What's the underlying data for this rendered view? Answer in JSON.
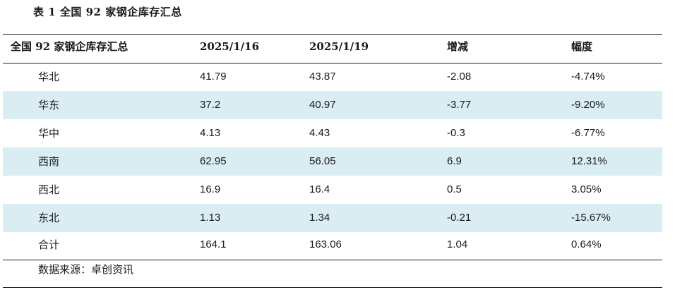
{
  "caption": "表 1  全国 92 家钢企库存汇总",
  "table": {
    "headers": [
      "全国 92 家钢企库存汇总",
      "2025/1/16",
      "2025/1/19",
      "增减",
      "幅度"
    ],
    "rows": [
      [
        "华北",
        "41.79",
        "43.87",
        "-2.08",
        "-4.74%"
      ],
      [
        "华东",
        "37.2",
        "40.97",
        "-3.77",
        "-9.20%"
      ],
      [
        "华中",
        "4.13",
        "4.43",
        "-0.3",
        "-6.77%"
      ],
      [
        "西南",
        "62.95",
        "56.05",
        "6.9",
        "12.31%"
      ],
      [
        "西北",
        "16.9",
        "16.4",
        "0.5",
        "3.05%"
      ],
      [
        "东北",
        "1.13",
        "1.34",
        "-0.21",
        "-15.67%"
      ],
      [
        "合计",
        "164.1",
        "163.06",
        "1.04",
        "0.64%"
      ]
    ],
    "shade_color": "#daedf2"
  },
  "source": "数据来源：卓创资讯"
}
